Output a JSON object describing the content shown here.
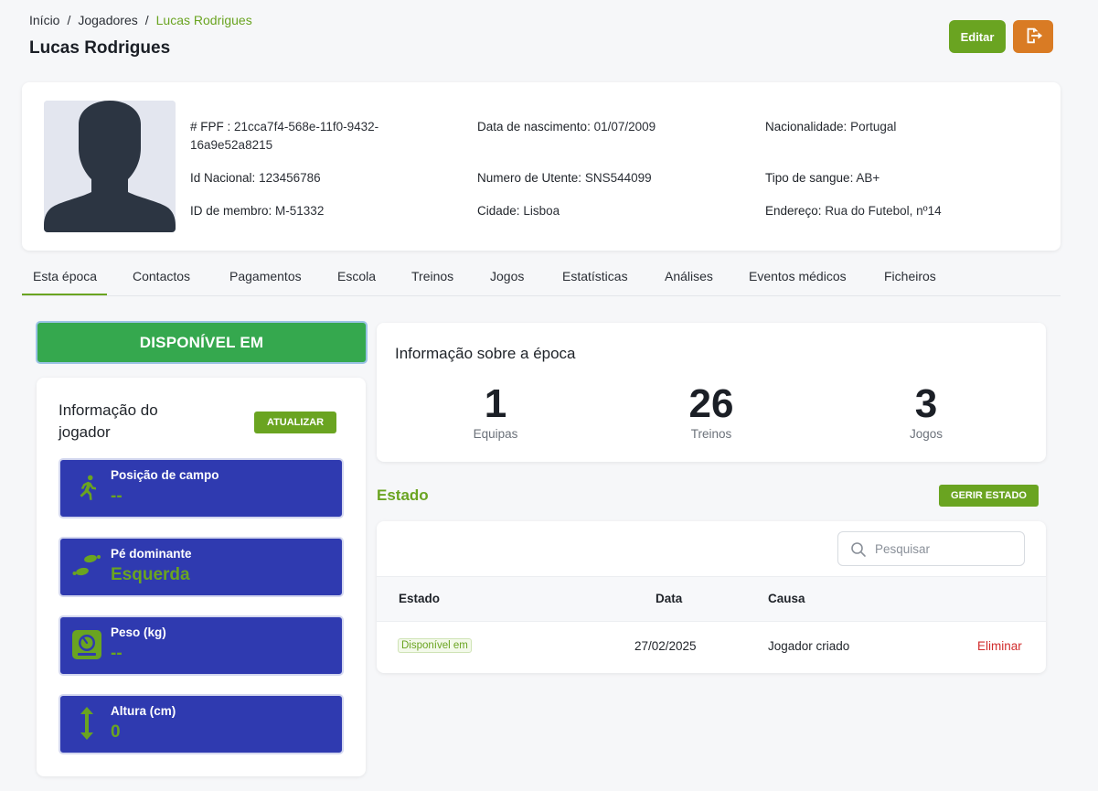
{
  "breadcrumb": {
    "items": [
      "Início",
      "Jogadores",
      "Lucas Rodrigues"
    ],
    "separator": "/"
  },
  "page": {
    "title": "Lucas Rodrigues"
  },
  "header_actions": {
    "edit_label": "Editar",
    "exit_icon": "exit-icon"
  },
  "profile": {
    "fpf_label": "# FPF :",
    "fpf_value": "21cca7f4-568e-11f0-9432-16a9e52a8215",
    "national_id_label": "Id Nacional:",
    "national_id_value": "123456786",
    "member_id_label": "ID de membro:",
    "member_id_value": "M-51332",
    "birth_label": "Data de nascimento:",
    "birth_value": "01/07/2009",
    "utente_label": "Numero de Utente:",
    "utente_value": "SNS544099",
    "city_label": "Cidade:",
    "city_value": "Lisboa",
    "nationality_label": "Nacionalidade:",
    "nationality_value": "Portugal",
    "blood_label": "Tipo de sangue:",
    "blood_value": "AB+",
    "address_label": "Endereço:",
    "address_value": "Rua do Futebol, nº14"
  },
  "tabs": [
    "Esta época",
    "Contactos",
    "Pagamentos",
    "Escola",
    "Treinos",
    "Jogos",
    "Estatísticas",
    "Análises",
    "Eventos médicos",
    "Ficheiros"
  ],
  "active_tab": "Esta época",
  "availability": {
    "label": "DISPONÍVEL EM"
  },
  "player_info": {
    "title": "Informação do jogador",
    "update_label": "ATUALIZAR",
    "tiles": [
      {
        "label": "Posição de campo",
        "value": "--",
        "icon": "running-icon"
      },
      {
        "label": "Pé dominante",
        "value": "Esquerda",
        "icon": "footprints-icon"
      },
      {
        "label": "Peso (kg)",
        "value": "--",
        "icon": "scale-icon"
      },
      {
        "label": "Altura (cm)",
        "value": "0",
        "icon": "height-arrows-icon"
      }
    ]
  },
  "season": {
    "title": "Informação sobre a época",
    "metrics": [
      {
        "value": "1",
        "label": "Equipas"
      },
      {
        "value": "26",
        "label": "Treinos"
      },
      {
        "value": "3",
        "label": "Jogos"
      }
    ]
  },
  "status": {
    "title": "Estado",
    "manage_label": "GERIR ESTADO",
    "search_placeholder": "Pesquisar",
    "columns": [
      "Estado",
      "Data",
      "Causa"
    ],
    "rows": [
      {
        "estado": "Disponível em",
        "data": "27/02/2025",
        "causa": "Jogador criado",
        "action": "Eliminar"
      }
    ]
  },
  "colors": {
    "accent_green": "#6aa421",
    "available_green": "#35a84e",
    "tile_blue": "#2f3ab0",
    "exit_orange": "#d97b24",
    "danger_red": "#d12c2c"
  }
}
